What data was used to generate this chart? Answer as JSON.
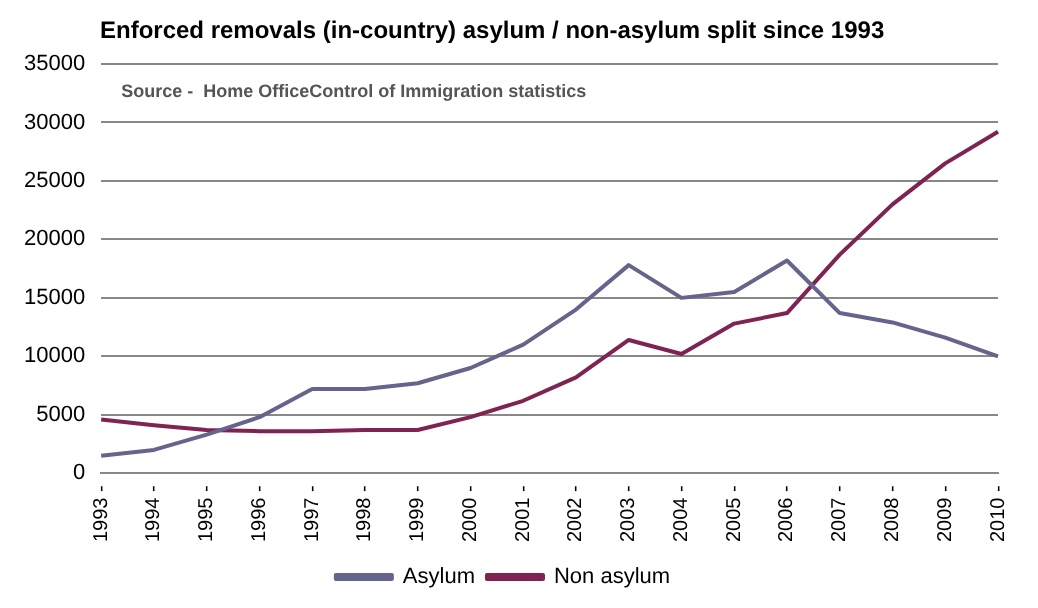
{
  "chart_data": {
    "type": "line",
    "title": "Enforced removals (in-country) asylum / non-asylum split since 1993",
    "annotations": [
      "Source -  Home OfficeControl of Immigration statistics"
    ],
    "categories": [
      "1993 -",
      "1994 -",
      "1995 -",
      "1996 -",
      "1997 -",
      "1998 -",
      "1999 -",
      "2000 -",
      "2001 -",
      "2002 -",
      "2003 -",
      "2004 -",
      "2005 -",
      "2006 -",
      "2007 -",
      "2008 -",
      "2009 -",
      "2010 -"
    ],
    "series": [
      {
        "name": "Asylum",
        "color": "#64648c",
        "values": [
          1500,
          2000,
          3300,
          4800,
          7200,
          7200,
          7700,
          9000,
          11000,
          14000,
          17800,
          15000,
          15500,
          18200,
          13700,
          12900,
          11600,
          10000
        ]
      },
      {
        "name": "Non asylum",
        "color": "#7f2352",
        "values": [
          4600,
          4100,
          3700,
          3600,
          3600,
          3700,
          3700,
          4800,
          6200,
          8200,
          11400,
          10200,
          12800,
          13700,
          18700,
          23000,
          26500,
          29200
        ]
      }
    ],
    "ylim": [
      0,
      35000
    ],
    "yticks": [
      0,
      5000,
      10000,
      15000,
      20000,
      25000,
      30000,
      35000
    ],
    "grid": "y",
    "legend": "bottom",
    "marker": "none",
    "line_style": "solid"
  }
}
